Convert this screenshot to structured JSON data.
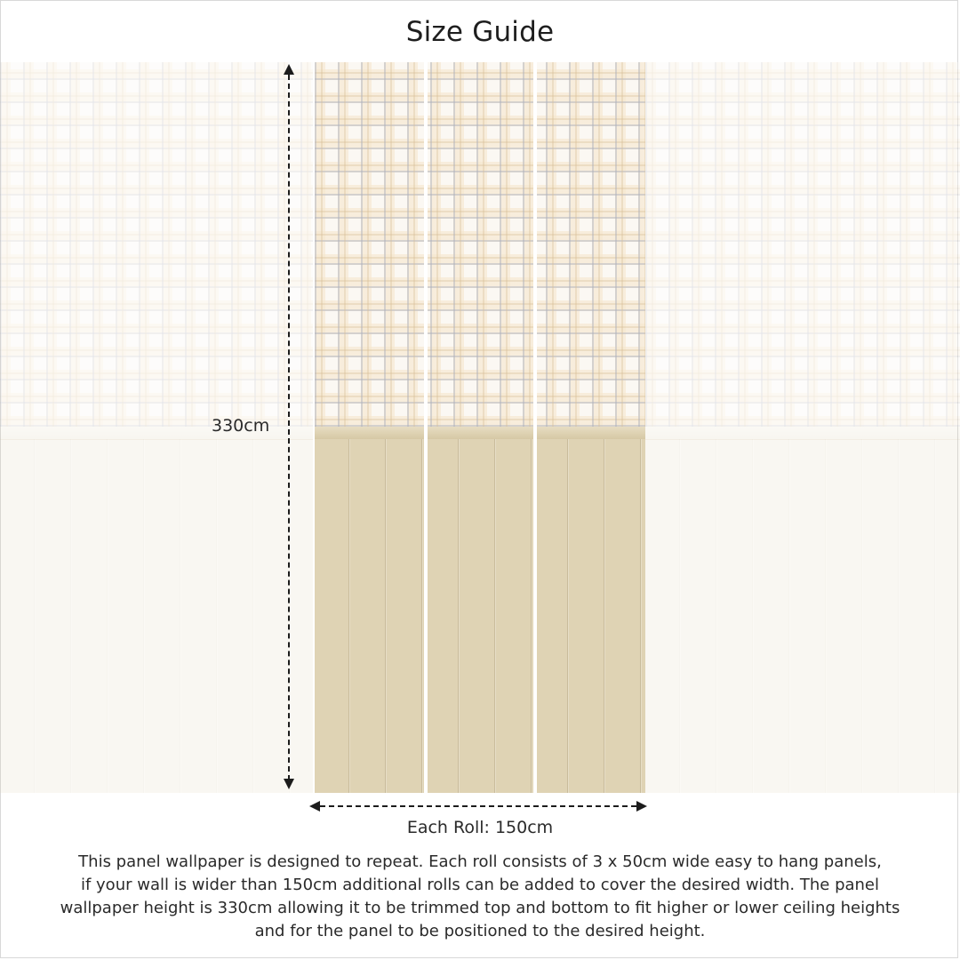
{
  "header": {
    "title": "Size Guide"
  },
  "measurements": {
    "height_label": "330cm",
    "width_label": "Each Roll: 150cm"
  },
  "description": {
    "lines": [
      "This panel wallpaper is designed to repeat. Each roll consists of 3 x 50cm wide easy to hang panels,",
      "if your wall is wider than 150cm additional rolls can be added to cover the desired width. The panel",
      "wallpaper height is 330cm allowing it to be trimmed top and bottom to fit higher or lower ceiling heights",
      "and for the panel to be positioned to the desired height."
    ]
  },
  "colors": {
    "plaid_base": "#fbf8f3",
    "wainscot": "#dfd3b4",
    "text": "#2a2a2a"
  }
}
